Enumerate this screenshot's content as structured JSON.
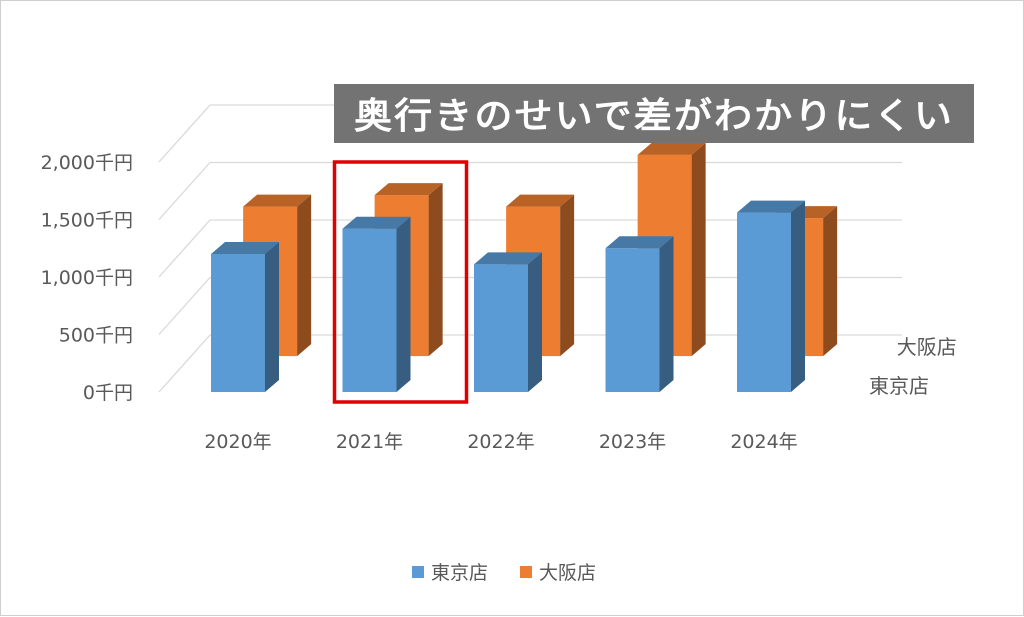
{
  "chart_data": {
    "type": "bar",
    "projection": "3d-column-with-depth",
    "categories": [
      "2020年",
      "2021年",
      "2022年",
      "2023年",
      "2024年"
    ],
    "series": [
      {
        "name": "東京店",
        "values": [
          1200,
          1420,
          1110,
          1250,
          1560
        ],
        "color": "#5b9bd5"
      },
      {
        "name": "大阪店",
        "values": [
          1300,
          1400,
          1300,
          1750,
          1200
        ],
        "color": "#ed7d31"
      }
    ],
    "ylim": [
      0,
      2000
    ],
    "yticks": [
      "0千円",
      "500千円",
      "1,000千円",
      "1,500千円",
      "2,000千円"
    ],
    "grid": true,
    "legend_position": "bottom",
    "annotation": {
      "text": "奥行きのせいで差がわかりにくい",
      "highlight_category": "2021年",
      "highlight_color": "#e00000",
      "banner_color": "#737373"
    }
  }
}
